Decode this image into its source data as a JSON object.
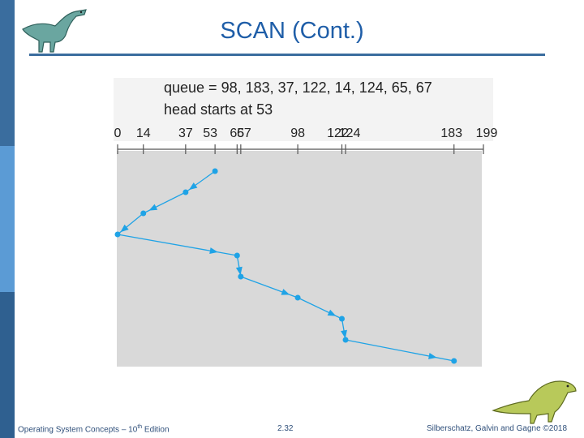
{
  "slide": {
    "title": "SCAN (Cont.)",
    "queue_text": "queue = 98, 183, 37, 122, 14, 124, 65, 67",
    "head_text": "head starts at 53"
  },
  "scan": {
    "axis_ticks": [
      0,
      14,
      37,
      53,
      65,
      67,
      98,
      122,
      124,
      183,
      199
    ],
    "axis_labels": [
      "0",
      "14",
      "37",
      "53",
      "65",
      "67",
      "98",
      "122",
      "124",
      "183",
      "199"
    ],
    "path_order": [
      53,
      37,
      14,
      0,
      65,
      67,
      98,
      122,
      124,
      183
    ],
    "max_cylinder": 199,
    "line_color": "#1fa3e6",
    "panel_color": "#d9d9d9"
  },
  "footer": {
    "left_prefix": "Operating System Concepts – 10",
    "left_sup": "th",
    "left_suffix": " Edition",
    "page": "2.32",
    "right": "Silberschatz, Galvin and Gagne ©2018"
  }
}
